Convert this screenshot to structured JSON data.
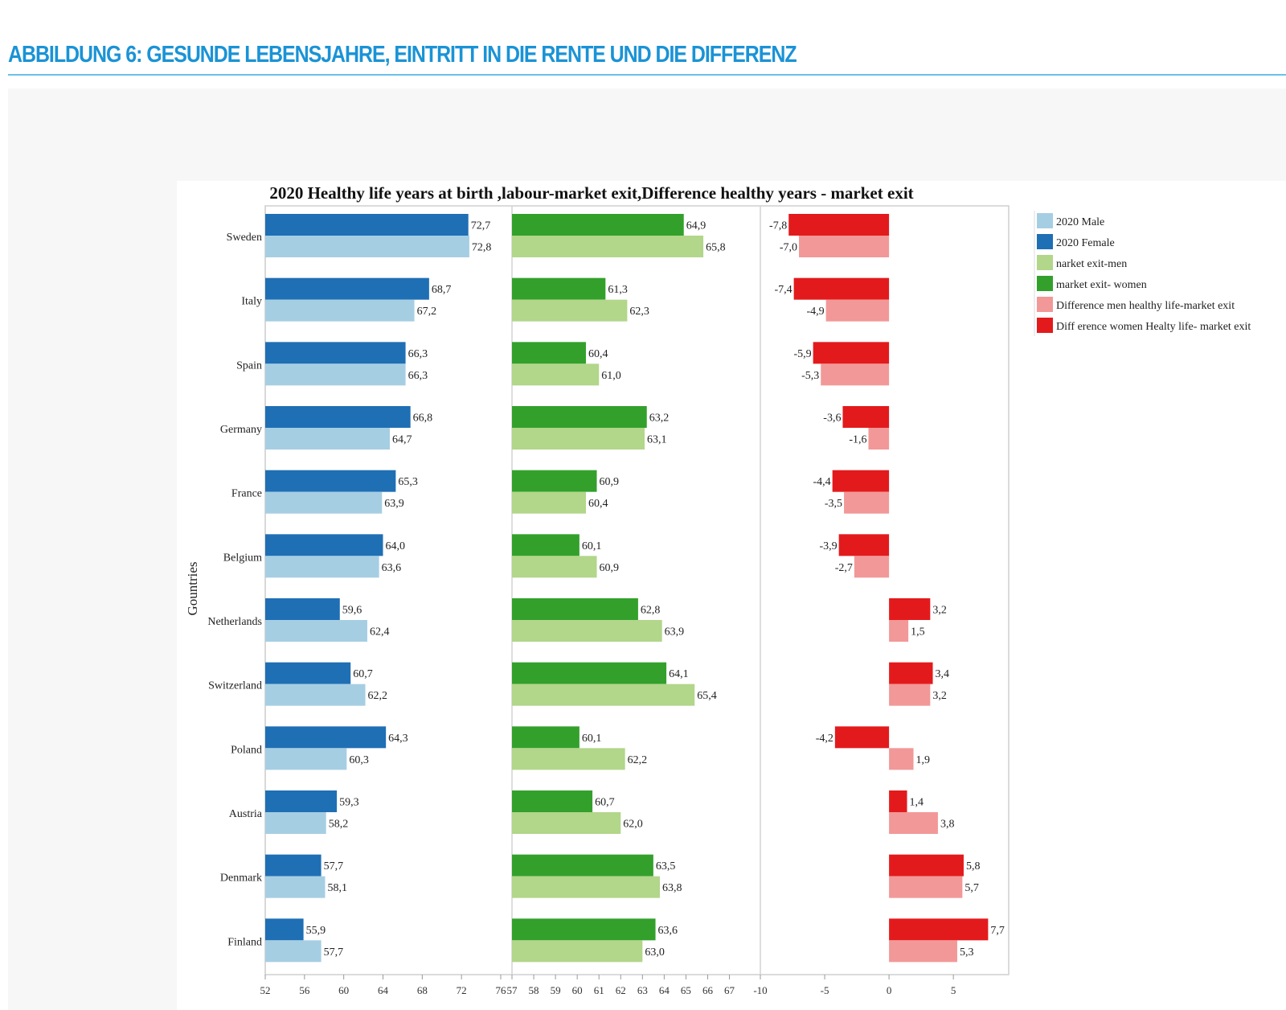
{
  "page": {
    "heading": "ABBILDUNG 6: GESUNDE LEBENSJAHRE, EINTRITT IN DIE RENTE UND DIE DIFFERENZ"
  },
  "chart_data": {
    "type": "bar",
    "orientation": "horizontal",
    "title": "2020 Healthy life years at birth ,labour-market exit,Difference healthy  years - market exit",
    "ylabel": "Gountries",
    "legend_position": "right",
    "categories": [
      "Sweden",
      "Italy",
      "Spain",
      "Germany",
      "France",
      "Belgium",
      "Netherlands",
      "Switzerland",
      "Poland",
      "Austria",
      "Denmark",
      "Finland"
    ],
    "panels": [
      {
        "name": "healthy-life-years",
        "xlim": [
          52,
          76
        ],
        "ticks": [
          52,
          56,
          60,
          64,
          68,
          72,
          76
        ],
        "tick_labels": [
          "52",
          "56",
          "60",
          "64",
          "68",
          "72",
          "76"
        ],
        "series": [
          {
            "name": "2020 Female",
            "color": "#1f6fb4",
            "values": [
              72.7,
              68.7,
              66.3,
              66.8,
              65.3,
              64.0,
              59.6,
              60.7,
              64.3,
              59.3,
              57.7,
              55.9
            ],
            "labels": [
              "72,7",
              "68,7",
              "66,3",
              "66,8",
              "65,3",
              "64,0",
              "59,6",
              "60,7",
              "64,3",
              "59,3",
              "57,7",
              "55,9"
            ]
          },
          {
            "name": "2020 Male",
            "color": "#a6cee3",
            "values": [
              72.8,
              67.2,
              66.3,
              64.7,
              63.9,
              63.6,
              62.4,
              62.2,
              60.3,
              58.2,
              58.1,
              57.7
            ],
            "labels": [
              "72,8",
              "67,2",
              "66,3",
              "64,7",
              "63,9",
              "63,6",
              "62,4",
              "62,2",
              "60,3",
              "58,2",
              "58,1",
              "57,7"
            ]
          }
        ]
      },
      {
        "name": "labour-market-exit",
        "xlim": [
          57,
          68.2
        ],
        "ticks": [
          57,
          58,
          59,
          60,
          61,
          62,
          63,
          64,
          65,
          66,
          67
        ],
        "tick_labels": [
          "57",
          "58",
          "59",
          "60",
          "61",
          "62",
          "63",
          "64",
          "65",
          "66",
          "67"
        ],
        "series": [
          {
            "name": "market exit- women",
            "color": "#33a02c",
            "values": [
              64.9,
              61.3,
              60.4,
              63.2,
              60.9,
              60.1,
              62.8,
              64.1,
              60.1,
              60.7,
              63.5,
              63.6
            ],
            "labels": [
              "64,9",
              "61,3",
              "60,4",
              "63,2",
              "60,9",
              "60,1",
              "62,8",
              "64,1",
              "60,1",
              "60,7",
              "63,5",
              "63,6"
            ]
          },
          {
            "name": "narket exit-men",
            "color": "#b2d68a",
            "values": [
              65.8,
              62.3,
              61.0,
              63.1,
              60.4,
              60.9,
              63.9,
              65.4,
              62.2,
              62.0,
              63.8,
              63.0
            ],
            "labels": [
              "65,8",
              "62,3",
              "61,0",
              "63,1",
              "60,4",
              "60,9",
              "63,9",
              "65,4",
              "62,2",
              "62,0",
              "63,8",
              "63,0"
            ]
          }
        ]
      },
      {
        "name": "difference",
        "xlim": [
          -10,
          9.3
        ],
        "ticks": [
          -10,
          -5,
          0,
          5
        ],
        "tick_labels": [
          "-10",
          "-5",
          "0",
          "5"
        ],
        "series": [
          {
            "name": "Diff erence women Healty life- market exit",
            "color": "#e31a1c",
            "values": [
              -7.8,
              -7.4,
              -5.9,
              -3.6,
              -4.4,
              -3.9,
              3.2,
              3.4,
              -4.2,
              1.4,
              5.8,
              7.7
            ],
            "labels": [
              "-7,8",
              "-7,4",
              "-5,9",
              "-3,6",
              "-4,4",
              "-3,9",
              "3,2",
              "3,4",
              "-4,2",
              "1,4",
              "5,8",
              "7,7"
            ]
          },
          {
            "name": "Difference men healthy life-market exit",
            "color": "#f29898",
            "values": [
              -7.0,
              -4.9,
              -5.3,
              -1.6,
              -3.5,
              -2.7,
              1.5,
              3.2,
              1.9,
              3.8,
              5.7,
              5.3
            ],
            "labels": [
              "-7,0",
              "-4,9",
              "-5,3",
              "-1,6",
              "-3,5",
              "-2,7",
              "1,5",
              "3,2",
              "1,9",
              "3,8",
              "5,7",
              "5,3"
            ]
          }
        ]
      }
    ],
    "legend": [
      {
        "label": "2020 Male",
        "color": "#a6cee3"
      },
      {
        "label": "2020 Female",
        "color": "#1f6fb4"
      },
      {
        "label": "narket exit-men",
        "color": "#b2d68a"
      },
      {
        "label": "market exit- women",
        "color": "#33a02c"
      },
      {
        "label": "Difference men healthy life-market exit",
        "color": "#f29898"
      },
      {
        "label": "Diff erence women Healty life- market exit",
        "color": "#e31a1c"
      }
    ]
  }
}
